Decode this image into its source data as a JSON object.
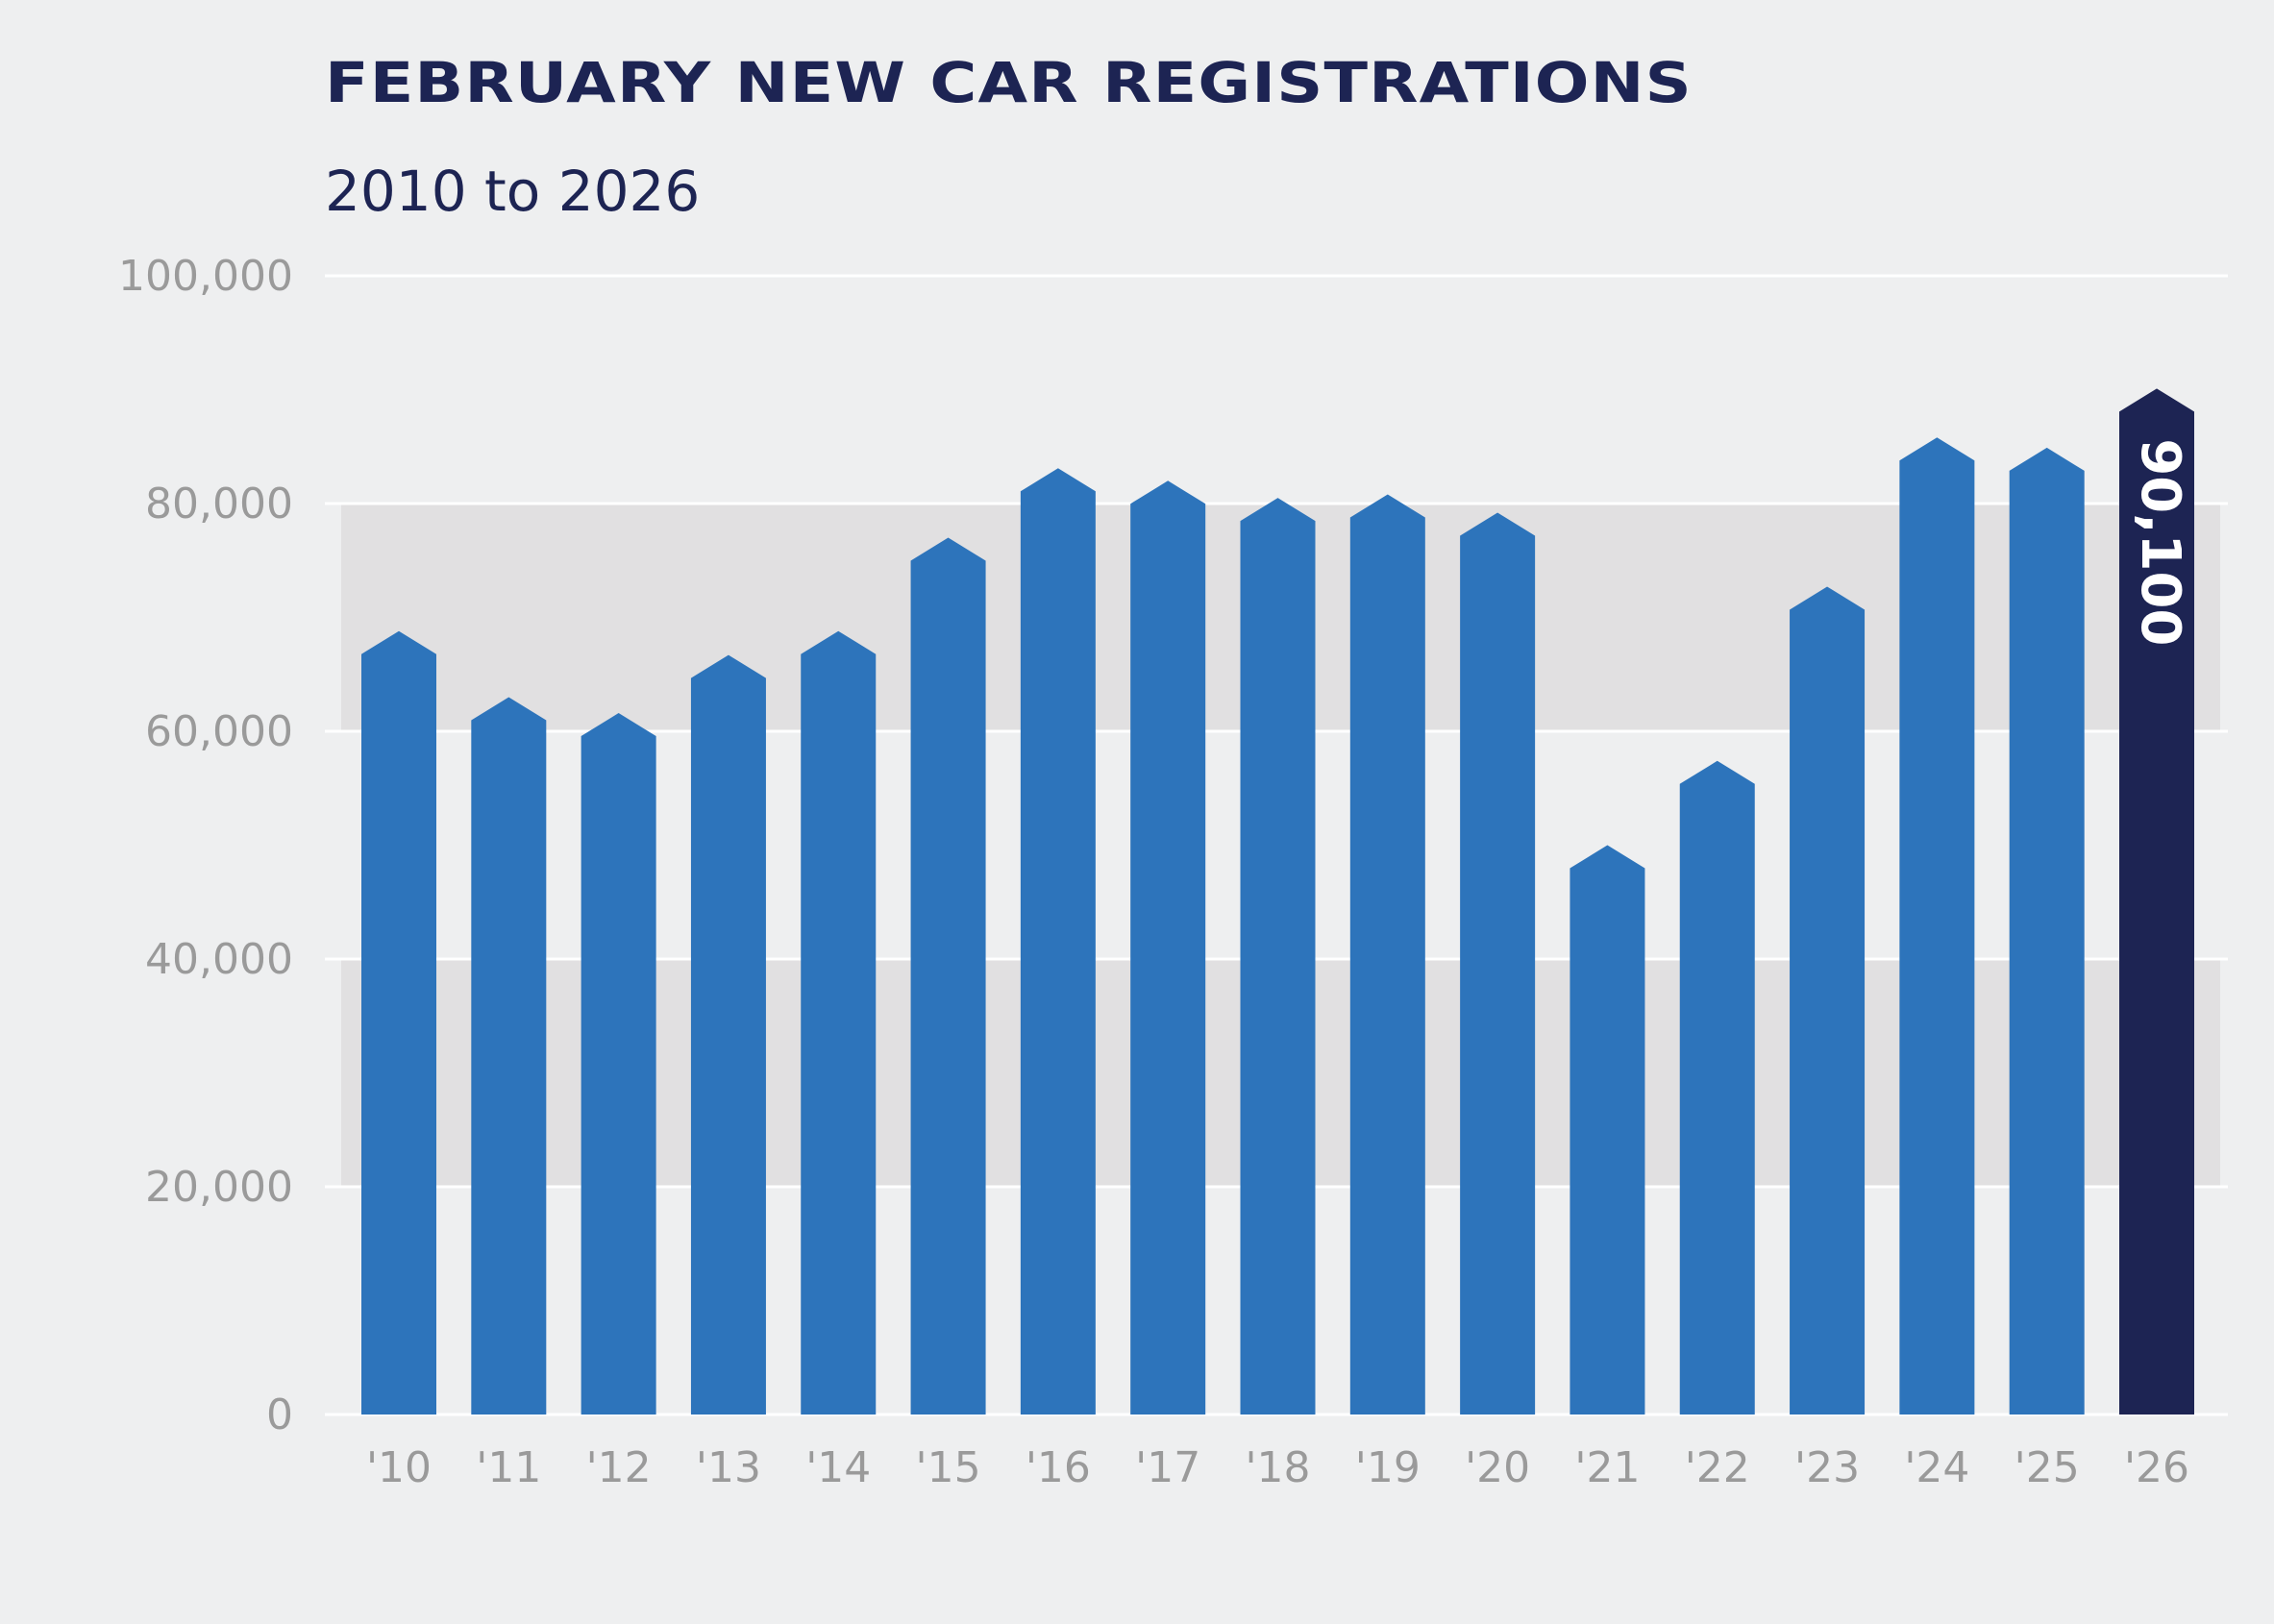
{
  "header": {
    "title": "FEBRUARY NEW CAR REGISTRATIONS",
    "subtitle": "2010 to 2026"
  },
  "colors": {
    "background": "#eeeff0",
    "band": "#e1e0e1",
    "bar": "#2d74bb",
    "highlight_bar": "#1d2453",
    "title": "#1d2453",
    "tick": "#9a9a9a",
    "gridline": "#ffffff"
  },
  "chart_data": {
    "type": "bar",
    "title": "FEBRUARY NEW CAR REGISTRATIONS",
    "subtitle": "2010 to 2026",
    "categories": [
      "'10",
      "'11",
      "'12",
      "'13",
      "'14",
      "'15",
      "'16",
      "'17",
      "'18",
      "'19",
      "'20",
      "'21",
      "'22",
      "'23",
      "'24",
      "'25",
      "'26"
    ],
    "values": [
      68800,
      63000,
      61600,
      66700,
      68800,
      77000,
      83100,
      82000,
      80500,
      80800,
      79200,
      50000,
      57400,
      72700,
      85800,
      84900,
      90100
    ],
    "highlight_index": 16,
    "highlight_label": "90,100",
    "yticks": [
      0,
      20000,
      40000,
      60000,
      80000,
      100000
    ],
    "ytick_labels": [
      "0",
      "20,000",
      "40,000",
      "60,000",
      "80,000",
      "100,000"
    ],
    "ylim": [
      0,
      100000
    ],
    "grid": true,
    "xlabel": "",
    "ylabel": ""
  }
}
